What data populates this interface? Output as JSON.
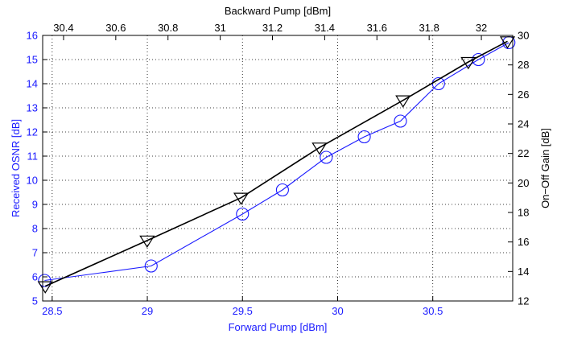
{
  "chart_data": {
    "type": "line",
    "title": "",
    "x_bottom": {
      "label": "Forward Pump [dBm]",
      "lim": [
        28.45,
        30.92
      ],
      "ticks": [
        28.5,
        29,
        29.5,
        30,
        30.5
      ],
      "tick_labels": [
        "28.5",
        "29",
        "29.5",
        "30",
        "30.5"
      ]
    },
    "x_top": {
      "label": "Backward Pump [dBm]",
      "lim": [
        30.32,
        32.12
      ],
      "ticks": [
        30.4,
        30.6,
        30.8,
        31,
        31.2,
        31.4,
        31.6,
        31.8,
        32
      ],
      "tick_labels": [
        "30.4",
        "30.6",
        "30.8",
        "31",
        "31.2",
        "31.4",
        "31.6",
        "31.8",
        "32"
      ]
    },
    "y_left": {
      "label": "Received OSNR [dB]",
      "lim": [
        5,
        16
      ],
      "ticks": [
        5,
        6,
        7,
        8,
        9,
        10,
        11,
        12,
        13,
        14,
        15,
        16
      ],
      "tick_labels": [
        "5",
        "6",
        "7",
        "8",
        "9",
        "10",
        "11",
        "12",
        "13",
        "14",
        "15",
        "16"
      ]
    },
    "y_right": {
      "label": "On−Off Gain [dB]",
      "lim": [
        12,
        30
      ],
      "ticks": [
        12,
        14,
        16,
        18,
        20,
        22,
        24,
        26,
        28,
        30
      ],
      "tick_labels": [
        "12",
        "14",
        "16",
        "18",
        "20",
        "22",
        "24",
        "26",
        "28",
        "30"
      ]
    },
    "grid": true,
    "colors": {
      "osnr": "#1a1aff",
      "gain": "#000000"
    },
    "series": [
      {
        "key": "osnr",
        "x_axis": "bottom",
        "y_axis": "left",
        "marker": "circle",
        "x": [
          28.46,
          29.02,
          29.5,
          29.71,
          29.94,
          30.14,
          30.33,
          30.53,
          30.74,
          30.9
        ],
        "y": [
          5.85,
          6.45,
          8.6,
          9.6,
          10.95,
          11.8,
          12.45,
          14.0,
          15.0,
          15.7
        ]
      },
      {
        "key": "gain",
        "x_axis": "top",
        "y_axis": "right",
        "marker": "triangle-down",
        "x": [
          30.33,
          30.72,
          31.08,
          31.38,
          31.7,
          31.95,
          32.1
        ],
        "y": [
          13.0,
          16.1,
          19.0,
          22.4,
          25.6,
          28.2,
          29.6
        ]
      }
    ]
  }
}
